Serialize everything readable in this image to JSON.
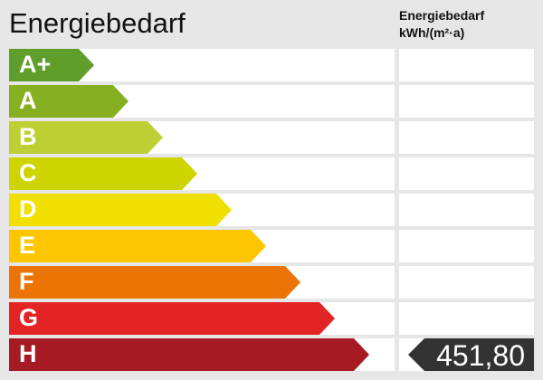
{
  "chart_data": {
    "type": "bar",
    "title": "Energiebedarf",
    "column_header": [
      "Energiebedarf",
      "kWh/(m²·a)"
    ],
    "categories": [
      "A+",
      "A",
      "B",
      "C",
      "D",
      "E",
      "F",
      "G",
      "H"
    ],
    "colors": [
      "#5f9e2b",
      "#86b022",
      "#bdd033",
      "#cdd400",
      "#f0df00",
      "#fdc600",
      "#ec7405",
      "#e32424",
      "#a61b23"
    ],
    "value": "451,80",
    "value_class": "H",
    "marker_color": "#333333"
  }
}
